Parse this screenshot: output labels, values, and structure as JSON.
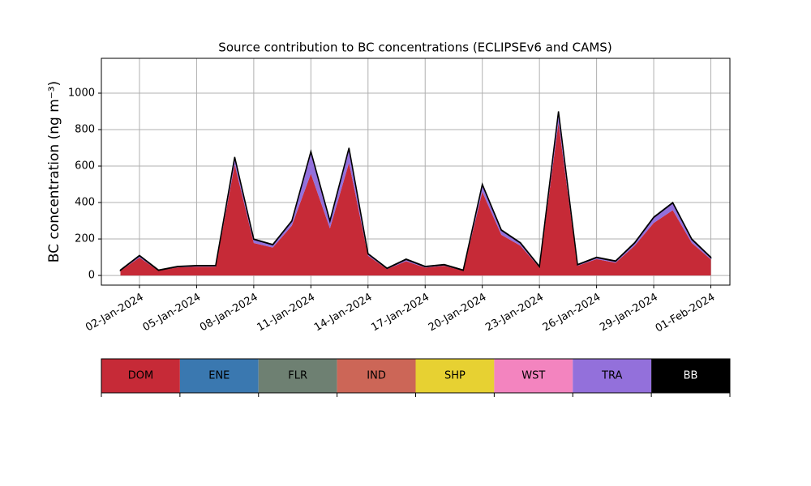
{
  "chart_data": {
    "type": "stacked_area",
    "title": "Source contribution to BC concentrations (ECLIPSEv6 and CAMS)",
    "y_label": "BC concentration (ng m⁻³)",
    "x": [
      "2024-01-01",
      "2024-01-02",
      "2024-01-03",
      "2024-01-04",
      "2024-01-05",
      "2024-01-06",
      "2024-01-07",
      "2024-01-08",
      "2024-01-09",
      "2024-01-10",
      "2024-01-11",
      "2024-01-12",
      "2024-01-13",
      "2024-01-14",
      "2024-01-15",
      "2024-01-16",
      "2024-01-17",
      "2024-01-18",
      "2024-01-19",
      "2024-01-20",
      "2024-01-21",
      "2024-01-22",
      "2024-01-23",
      "2024-01-24",
      "2024-01-25",
      "2024-01-26",
      "2024-01-27",
      "2024-01-28",
      "2024-01-29",
      "2024-01-30",
      "2024-01-31",
      "2024-02-01"
    ],
    "series": [
      {
        "name": "DOM",
        "color": "#c62a37",
        "values": [
          26,
          98,
          26,
          44,
          48,
          48,
          608,
          178,
          153,
          273,
          558,
          258,
          618,
          108,
          35,
          78,
          43,
          53,
          26,
          458,
          223,
          163,
          44,
          838,
          53,
          90,
          70,
          163,
          288,
          358,
          178,
          88
        ]
      },
      {
        "name": "ENE",
        "color": "#3a78b0",
        "values": [
          0,
          0,
          0,
          0,
          0,
          0,
          0,
          0,
          0,
          0,
          0,
          0,
          0,
          0,
          0,
          0,
          0,
          0,
          0,
          0,
          0,
          0,
          0,
          0,
          0,
          0,
          0,
          0,
          0,
          0,
          0,
          0
        ]
      },
      {
        "name": "FLR",
        "color": "#6e8072",
        "values": [
          0,
          0,
          0,
          0,
          0,
          0,
          0,
          0,
          0,
          0,
          0,
          0,
          0,
          0,
          0,
          0,
          0,
          0,
          0,
          0,
          0,
          0,
          0,
          0,
          0,
          0,
          0,
          0,
          0,
          0,
          0,
          0
        ]
      },
      {
        "name": "IND",
        "color": "#cc6657",
        "values": [
          0,
          0,
          0,
          0,
          0,
          0,
          0,
          0,
          0,
          0,
          0,
          0,
          0,
          0,
          0,
          0,
          0,
          0,
          0,
          0,
          0,
          0,
          0,
          0,
          0,
          0,
          0,
          0,
          0,
          0,
          0,
          0
        ]
      },
      {
        "name": "SHP",
        "color": "#e7d132",
        "values": [
          0,
          0,
          0,
          0,
          0,
          0,
          0,
          0,
          0,
          0,
          0,
          0,
          0,
          0,
          0,
          0,
          0,
          0,
          0,
          0,
          0,
          0,
          0,
          0,
          0,
          0,
          0,
          0,
          0,
          0,
          0,
          0
        ]
      },
      {
        "name": "WST",
        "color": "#f384bf",
        "values": [
          0,
          0,
          0,
          0,
          0,
          0,
          0,
          0,
          0,
          0,
          0,
          0,
          0,
          0,
          0,
          0,
          0,
          0,
          0,
          0,
          0,
          0,
          0,
          0,
          0,
          0,
          0,
          0,
          0,
          0,
          0,
          0
        ]
      },
      {
        "name": "TRA",
        "color": "#9370db",
        "values": [
          2,
          10,
          2,
          4,
          5,
          5,
          40,
          20,
          15,
          25,
          120,
          40,
          80,
          10,
          3,
          10,
          5,
          5,
          2,
          40,
          25,
          15,
          4,
          60,
          5,
          8,
          8,
          15,
          30,
          40,
          20,
          10
        ]
      },
      {
        "name": "BB",
        "color": "#000000",
        "values": [
          2,
          2,
          2,
          2,
          2,
          2,
          2,
          2,
          2,
          2,
          2,
          2,
          2,
          2,
          2,
          2,
          2,
          2,
          2,
          2,
          2,
          2,
          2,
          2,
          2,
          2,
          2,
          2,
          2,
          2,
          2,
          2
        ]
      }
    ],
    "xlim": [
      "2023-12-31",
      "2024-02-02"
    ],
    "xticks": [
      {
        "value": "2024-01-02",
        "label": "02-Jan-2024"
      },
      {
        "value": "2024-01-05",
        "label": "05-Jan-2024"
      },
      {
        "value": "2024-01-08",
        "label": "08-Jan-2024"
      },
      {
        "value": "2024-01-11",
        "label": "11-Jan-2024"
      },
      {
        "value": "2024-01-14",
        "label": "14-Jan-2024"
      },
      {
        "value": "2024-01-17",
        "label": "17-Jan-2024"
      },
      {
        "value": "2024-01-20",
        "label": "20-Jan-2024"
      },
      {
        "value": "2024-01-23",
        "label": "23-Jan-2024"
      },
      {
        "value": "2024-01-26",
        "label": "26-Jan-2024"
      },
      {
        "value": "2024-01-29",
        "label": "29-Jan-2024"
      },
      {
        "value": "2024-02-01",
        "label": "01-Feb-2024"
      }
    ],
    "ylim": [
      -53,
      1191
    ],
    "yticks": [
      0,
      200,
      400,
      600,
      800,
      1000
    ],
    "grid": true
  }
}
